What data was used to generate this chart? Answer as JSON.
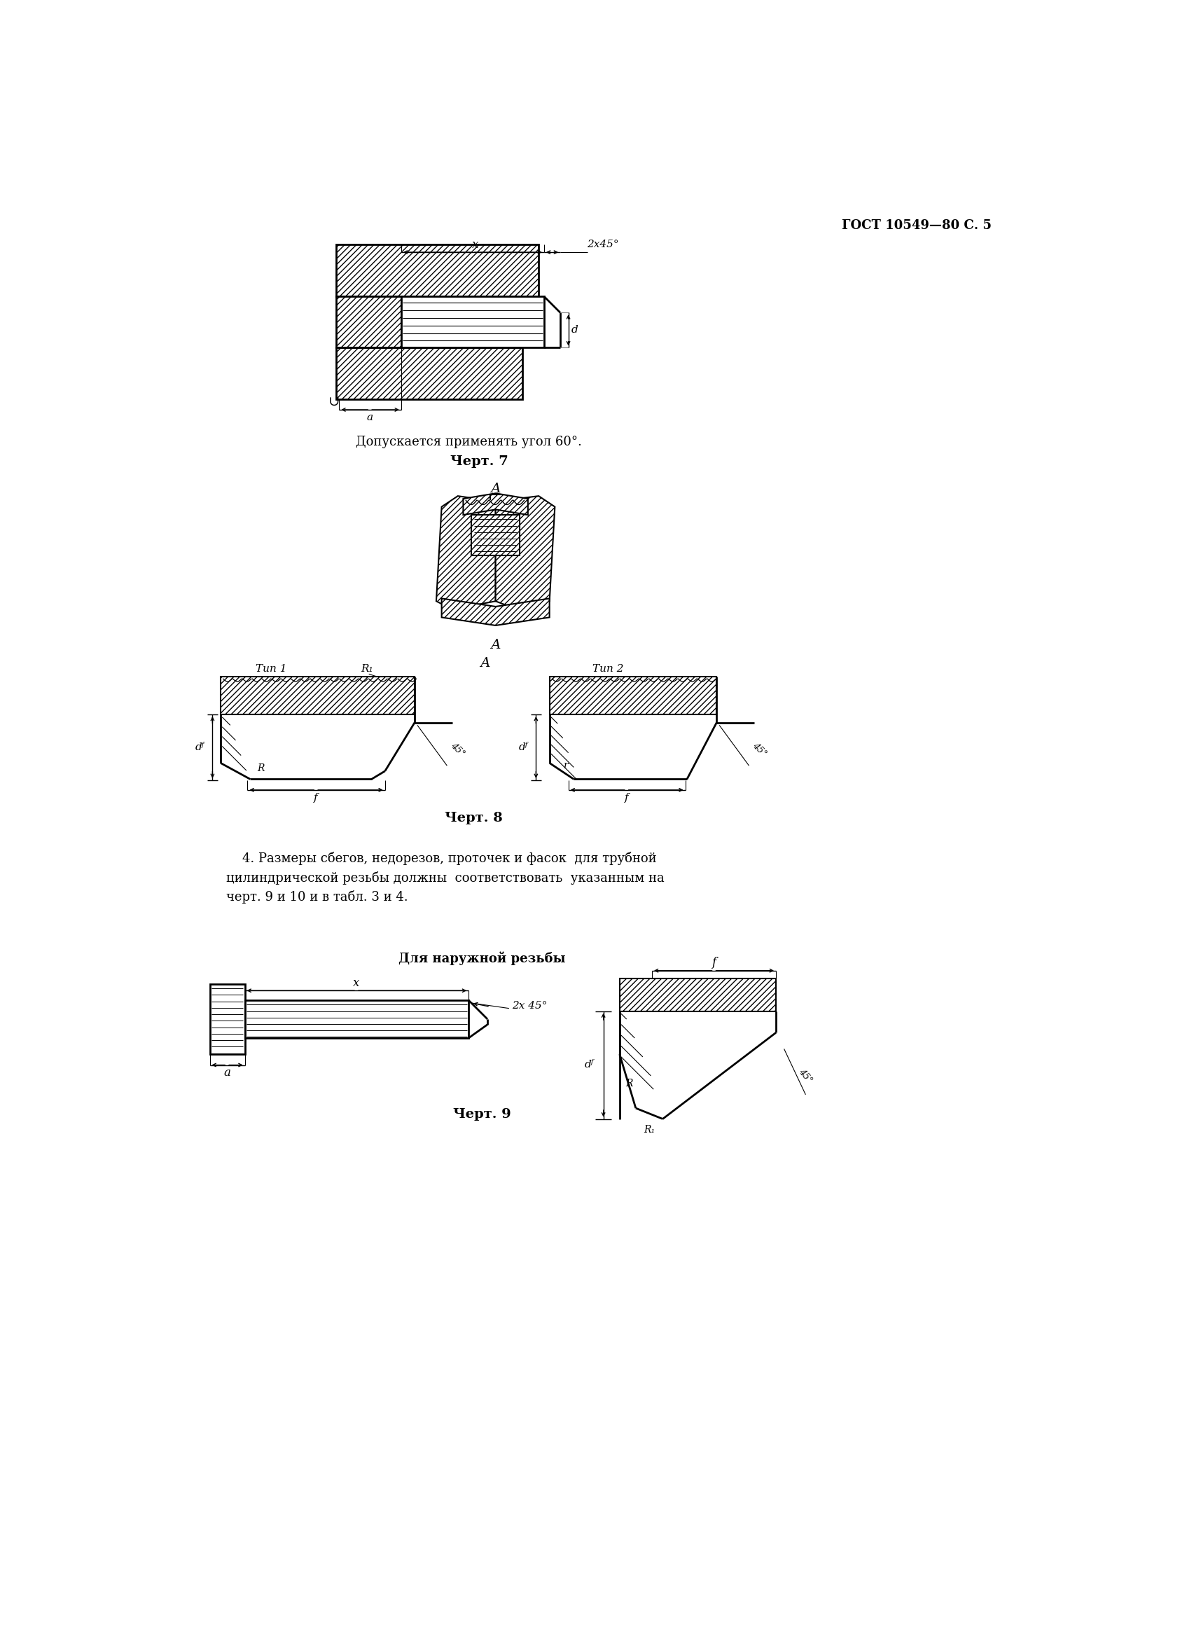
{
  "page_header": "ГОСТ 10549—80 С. 5",
  "fig7_note": "Допускается применять угол 60°.",
  "fig7_caption": "Черт. 7",
  "fig8_caption": "Черт. 8",
  "fig9_caption": "Черт. 9",
  "fig9_title": "Для наружной резьбы",
  "para4": "    4. Размеры сбегов, недорезов, проточек и фасок  для трубной\nцилиндрической резьбы должны  соответствовать  указанным на\nчерт. 9 и 10 и в табл. 3 и 4.",
  "bg_color": "#ffffff",
  "text_color": "#000000"
}
